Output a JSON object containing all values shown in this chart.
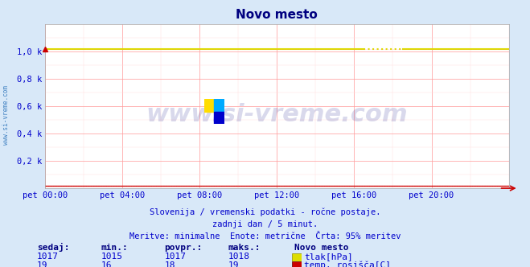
{
  "title": "Novo mesto",
  "title_color": "#000080",
  "bg_color": "#d8e8f8",
  "plot_bg_color": "#ffffff",
  "grid_color_major": "#ff9999",
  "grid_color_minor": "#ffdddd",
  "xlabel_ticks": [
    "pet 00:00",
    "pet 04:00",
    "pet 08:00",
    "pet 12:00",
    "pet 16:00",
    "pet 20:00"
  ],
  "ylim": [
    0,
    1200
  ],
  "xlim": [
    0,
    24
  ],
  "yticks": [
    0,
    200,
    400,
    600,
    800,
    1000
  ],
  "ytick_labels": [
    "",
    "0,2 k",
    "0,4 k",
    "0,6 k",
    "0,8 k",
    "1,0 k"
  ],
  "line1_color": "#dddd00",
  "line1_value": 1017,
  "line2_color": "#cc0000",
  "line2_value": 19,
  "watermark_text": "www.si-vreme.com",
  "watermark_color": "#000080",
  "watermark_alpha": 0.15,
  "footer_line1": "Slovenija / vremenski podatki - ročne postaje.",
  "footer_line2": "zadnji dan / 5 minut.",
  "footer_line3": "Meritve: minimalne  Enote: metrične  Črta: 95% meritev",
  "footer_color": "#0000cc",
  "table_header_color": "#000080",
  "table_value_color": "#0000cc",
  "table_cols": [
    "sedaj:",
    "min.:",
    "povpr.:",
    "maks.:"
  ],
  "table_col_header": "Novo mesto",
  "row1_values": [
    "1017",
    "1015",
    "1017",
    "1018"
  ],
  "row1_label": "tlak[hPa]",
  "row1_color": "#dddd00",
  "row1_border_color": "#888800",
  "row2_values": [
    "19",
    "16",
    "18",
    "19"
  ],
  "row2_label": "temp. rosišča[C]",
  "row2_color": "#cc0000",
  "row2_border_color": "#550000",
  "arrow_color": "#cc0000",
  "n_points": 289
}
